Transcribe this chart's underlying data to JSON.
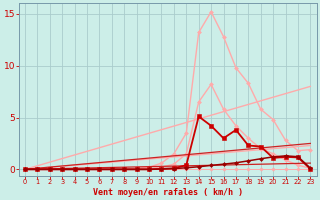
{
  "background_color": "#cceee8",
  "grid_color": "#aacccc",
  "xlabel": "Vent moyen/en rafales ( km/h )",
  "xlabel_color": "#cc0000",
  "tick_color": "#cc0000",
  "xlim": [
    -0.5,
    23.5
  ],
  "ylim": [
    -0.6,
    16
  ],
  "yticks": [
    0,
    5,
    10,
    15
  ],
  "xticks": [
    0,
    1,
    2,
    3,
    4,
    5,
    6,
    7,
    8,
    9,
    10,
    11,
    12,
    13,
    14,
    15,
    16,
    17,
    18,
    19,
    20,
    21,
    22,
    23
  ],
  "tri_upper": {
    "x": [
      0,
      23
    ],
    "y": [
      0,
      8.0
    ],
    "color": "#ffaaaa",
    "lw": 1.0
  },
  "tri_lower": {
    "x": [
      0,
      23
    ],
    "y": [
      0,
      2.3
    ],
    "color": "#ffaaaa",
    "lw": 1.0
  },
  "curve_upper": {
    "x": [
      0,
      1,
      2,
      3,
      4,
      5,
      6,
      7,
      8,
      9,
      10,
      11,
      12,
      13,
      14,
      15,
      16,
      17,
      18,
      19,
      20,
      21,
      22,
      23
    ],
    "y": [
      0,
      0,
      0,
      0,
      0,
      0,
      0,
      0,
      0,
      0.1,
      0.2,
      0.6,
      1.5,
      3.5,
      13.2,
      15.2,
      12.8,
      9.8,
      8.3,
      5.8,
      4.8,
      2.8,
      1.8,
      1.9
    ],
    "color": "#ffaaaa",
    "lw": 1.0,
    "marker": "D",
    "ms": 2.0
  },
  "curve_mid": {
    "x": [
      0,
      1,
      2,
      3,
      4,
      5,
      6,
      7,
      8,
      9,
      10,
      11,
      12,
      13,
      14,
      15,
      16,
      17,
      18,
      19,
      20,
      21,
      22,
      23
    ],
    "y": [
      0,
      0,
      0,
      0,
      0,
      0,
      0,
      0,
      0,
      0,
      0.05,
      0.2,
      0.5,
      1.5,
      6.5,
      8.2,
      5.8,
      4.2,
      3.0,
      2.0,
      1.5,
      0.9,
      0.4,
      0.1
    ],
    "color": "#ffaaaa",
    "lw": 1.0,
    "marker": "D",
    "ms": 2.0
  },
  "flat_pink": {
    "x": [
      0,
      1,
      2,
      3,
      4,
      5,
      6,
      7,
      8,
      9,
      10,
      11,
      12,
      13,
      14,
      15,
      16,
      17,
      18,
      19,
      20,
      21,
      22,
      23
    ],
    "y": [
      0,
      0,
      0,
      0,
      0,
      0,
      0,
      0,
      0,
      0,
      0,
      0,
      0,
      0,
      0,
      0,
      0,
      0,
      0,
      0,
      0,
      0,
      0,
      0
    ],
    "color": "#ffaaaa",
    "lw": 0.7,
    "marker": "D",
    "ms": 1.8
  },
  "dark_tri_upper": {
    "x": [
      0,
      23
    ],
    "y": [
      0,
      2.5
    ],
    "color": "#cc2222",
    "lw": 0.9
  },
  "dark_tri_lower": {
    "x": [
      0,
      23
    ],
    "y": [
      0,
      0.6
    ],
    "color": "#cc2222",
    "lw": 0.9
  },
  "main_red": {
    "x": [
      0,
      1,
      2,
      3,
      4,
      5,
      6,
      7,
      8,
      9,
      10,
      11,
      12,
      13,
      14,
      15,
      16,
      17,
      18,
      19,
      20,
      21,
      22,
      23
    ],
    "y": [
      0,
      0,
      0,
      0,
      0,
      0,
      0,
      0,
      0,
      0,
      0,
      0.05,
      0.1,
      0.4,
      5.1,
      4.2,
      3.0,
      3.8,
      2.3,
      2.2,
      1.1,
      1.2,
      1.15,
      0.05
    ],
    "color": "#cc0000",
    "lw": 1.3,
    "marker": "s",
    "ms": 2.5
  },
  "small_red": {
    "x": [
      0,
      1,
      2,
      3,
      4,
      5,
      6,
      7,
      8,
      9,
      10,
      11,
      12,
      13,
      14,
      15,
      16,
      17,
      18,
      19,
      20,
      21,
      22,
      23
    ],
    "y": [
      0,
      0,
      0,
      0,
      0,
      0,
      0,
      0,
      0,
      0,
      0,
      0.03,
      0.07,
      0.15,
      0.25,
      0.38,
      0.5,
      0.63,
      0.82,
      1.02,
      1.2,
      1.3,
      1.22,
      0.12
    ],
    "color": "#990000",
    "lw": 1.1,
    "marker": "D",
    "ms": 2.0
  }
}
